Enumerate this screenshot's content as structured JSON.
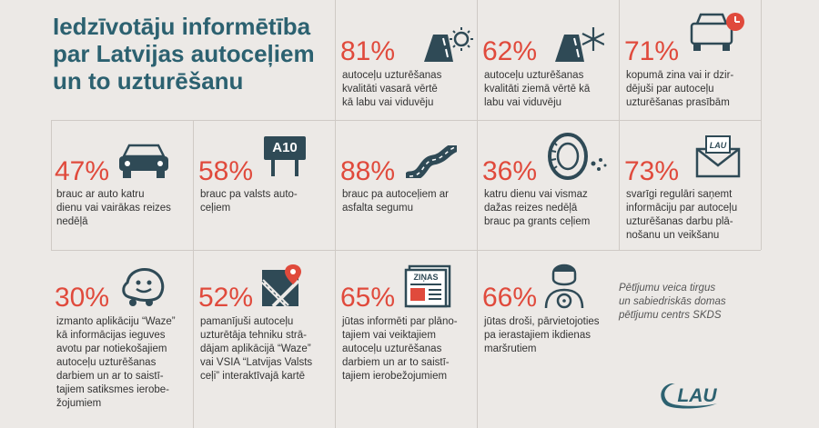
{
  "title_lines": [
    "Iedzīvotāju informētība",
    "par Latvijas autoceļiem",
    "un to uzturēšanu"
  ],
  "stats": [
    {
      "pct": "81%",
      "lines": [
        "autoceļu uzturēšanas",
        "kvalitāti vasarā vērtē",
        "kā labu vai viduvēju"
      ],
      "icon": "road-sun-icon"
    },
    {
      "pct": "62%",
      "lines": [
        "autoceļu uzturēšanas",
        "kvalitāti ziemā vērtē kā",
        "labu vai viduvēju"
      ],
      "icon": "road-snow-icon"
    },
    {
      "pct": "71%",
      "lines": [
        "kopumā zina vai ir dzir-",
        "dējuši par autoceļu",
        "uzturēšanas prasībām"
      ],
      "icon": "car-clock-icon"
    },
    {
      "pct": "47%",
      "lines": [
        "brauc ar auto katru",
        "dienu vai vairākas reizes",
        "nedēļā"
      ],
      "icon": "car-icon"
    },
    {
      "pct": "58%",
      "lines": [
        "brauc pa valsts auto-",
        "ceļiem"
      ],
      "icon": "road-sign-icon",
      "sign": "A10"
    },
    {
      "pct": "88%",
      "lines": [
        "brauc pa autoceļiem ar",
        "asfalta segumu"
      ],
      "icon": "winding-road-icon"
    },
    {
      "pct": "36%",
      "lines": [
        "katru dienu vai vismaz",
        "dažas reizes nedēļā",
        "brauc pa grants ceļiem"
      ],
      "icon": "tire-icon"
    },
    {
      "pct": "73%",
      "lines": [
        "svarīgi regulāri saņemt",
        "informāciju par autoceļu",
        "uzturēšanas darbu plā-",
        "nošanu un veikšanu"
      ],
      "icon": "envelope-icon",
      "badge": "LAU"
    },
    {
      "pct": "30%",
      "lines": [
        "izmanto aplikāciju “Waze”",
        "kā informācijas ieguves",
        "avotu par notiekošajiem",
        "autoceļu uzturēšanas",
        "darbiem un ar to saistī-",
        "tajiem satiksmes ierobe-",
        "žojumiem"
      ],
      "icon": "waze-icon"
    },
    {
      "pct": "52%",
      "lines": [
        "pamanījuši autoceļu",
        "uzturētāja tehniku strā-",
        "dājam aplikācijā “Waze”",
        "vai VSIA “Latvijas Valsts",
        "ceļi” interaktīvajā kartē"
      ],
      "icon": "map-pin-icon"
    },
    {
      "pct": "65%",
      "lines": [
        "jūtas informēti par plāno-",
        "tajiem vai veiktajiem",
        "autoceļu uzturēšanas",
        "darbiem un ar to saistī-",
        "tajiem ierobežojumiem"
      ],
      "icon": "newspaper-icon",
      "paper": "ZIŅAS"
    },
    {
      "pct": "66%",
      "lines": [
        "jūtas droši, pārvietojoties",
        "pa ierastajiem ikdienas",
        "maršrutiem"
      ],
      "icon": "driver-icon"
    }
  ],
  "note_lines": [
    "Pētījumu veica tirgus",
    "un sabiedriskās domas",
    "pētījumu centrs SKDS"
  ],
  "logo_text": "LAU",
  "colors": {
    "accent": "#e04a3c",
    "title": "#2c6170",
    "icon": "#2f4a56"
  }
}
